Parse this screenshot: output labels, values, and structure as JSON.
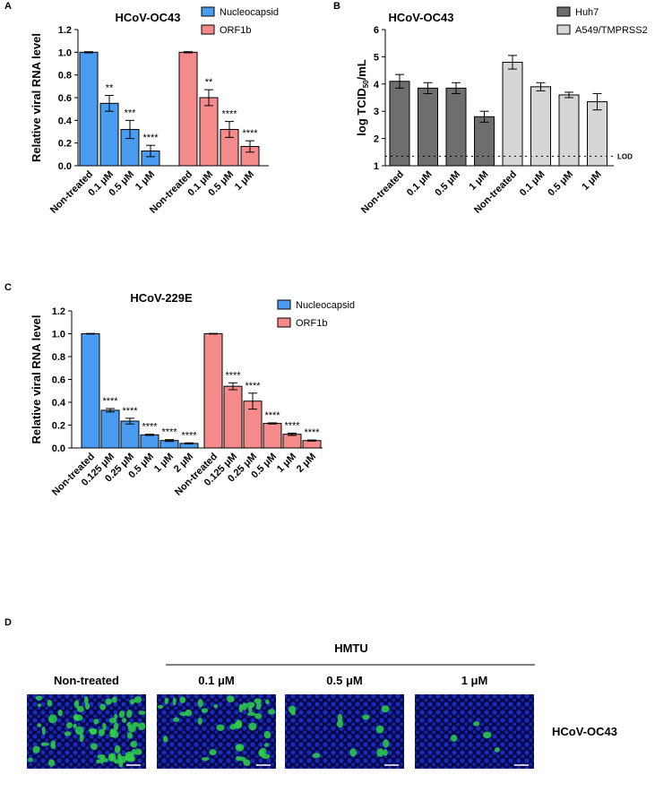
{
  "chart_data": [
    {
      "type": "bar",
      "title": "HCoV-OC43",
      "ylabel": [
        "Relative viral RNA level"
      ],
      "categories": [
        "Non-treated",
        "0.1 μM",
        "0.5 μM",
        "1 μM",
        "Non-treated",
        "0.1 μM",
        "0.5 μM",
        "1 μM"
      ],
      "series": [
        {
          "name": "Nucleocapsid",
          "color": "#4a9cf0",
          "values": [
            1.0,
            0.55,
            0.32,
            0.13,
            null,
            null,
            null,
            null
          ],
          "errors": [
            0.005,
            0.07,
            0.08,
            0.05,
            null,
            null,
            null,
            null
          ],
          "significance": [
            null,
            "**",
            "***",
            "****",
            null,
            null,
            null,
            null
          ]
        },
        {
          "name": "ORF1b",
          "color": "#f58a8a",
          "values": [
            null,
            null,
            null,
            null,
            1.0,
            0.6,
            0.32,
            0.17
          ],
          "errors": [
            null,
            null,
            null,
            null,
            0.005,
            0.07,
            0.07,
            0.05
          ],
          "significance": [
            null,
            null,
            null,
            null,
            null,
            "**",
            "****",
            "****"
          ]
        }
      ],
      "ylim": [
        0,
        1.2
      ],
      "yticks": [
        {
          "value": 0,
          "label": "0.0"
        },
        0.2,
        0.4,
        0.6,
        0.8,
        {
          "value": 1,
          "label": "1.0"
        },
        1.2
      ],
      "legend": "top-right",
      "grid": false
    },
    {
      "type": "bar",
      "title": "HCoV-OC43",
      "ylabel": [
        "log TCID",
        "50",
        "/mL"
      ],
      "categories": [
        "Non-treated",
        "0.1 μM",
        "0.5 μM",
        "1 μM",
        "Non-treated",
        "0.1 μM",
        "0.5 μM",
        "1 μM"
      ],
      "series": [
        {
          "name": "Huh7",
          "color": "#6e6e6e",
          "values": [
            4.1,
            3.85,
            3.85,
            2.8,
            null,
            null,
            null,
            null
          ],
          "errors": [
            0.25,
            0.2,
            0.2,
            0.2,
            null,
            null,
            null,
            null
          ]
        },
        {
          "name": "A549/TMPRSS2",
          "color": "#d6d6d6",
          "values": [
            null,
            null,
            null,
            null,
            4.8,
            3.9,
            3.6,
            3.35
          ],
          "errors": [
            null,
            null,
            null,
            null,
            0.25,
            0.15,
            0.1,
            0.3
          ]
        }
      ],
      "ylim": [
        1,
        6
      ],
      "yticks": [
        1,
        2,
        3,
        4,
        5,
        6
      ],
      "lod": {
        "value": 1.35,
        "label": "LOD"
      },
      "legend": "top-right",
      "grid": false
    },
    {
      "type": "bar",
      "title": "HCoV-229E",
      "ylabel": [
        "Relative viral RNA level"
      ],
      "categories": [
        "Non-treated",
        "0.125 μM",
        "0.25 μM",
        "0.5 μM",
        "1 μM",
        "2 μM",
        "Non-treated",
        "0.125 μM",
        "0.25 μM",
        "0.5 μM",
        "1 μM",
        "2 μM"
      ],
      "series": [
        {
          "name": "Nucleocapsid",
          "color": "#4a9cf0",
          "values": [
            1.0,
            0.33,
            0.235,
            0.115,
            0.065,
            0.04,
            null,
            null,
            null,
            null,
            null,
            null
          ],
          "errors": [
            0.003,
            0.015,
            0.025,
            0.005,
            0.008,
            0.005,
            null,
            null,
            null,
            null,
            null,
            null
          ],
          "significance": [
            null,
            "****",
            "****",
            "****",
            "****",
            "****",
            null,
            null,
            null,
            null,
            null,
            null
          ]
        },
        {
          "name": "ORF1b",
          "color": "#f58a8a",
          "values": [
            null,
            null,
            null,
            null,
            null,
            null,
            1.0,
            0.54,
            0.41,
            0.215,
            0.12,
            0.065
          ],
          "errors": [
            null,
            null,
            null,
            null,
            null,
            null,
            0.003,
            0.03,
            0.07,
            0.005,
            0.01,
            0.005
          ],
          "significance": [
            null,
            null,
            null,
            null,
            null,
            null,
            null,
            "****",
            "****",
            "****",
            "****",
            "****"
          ]
        }
      ],
      "ylim": [
        0,
        1.2
      ],
      "yticks": [
        {
          "value": 0,
          "label": "0.0"
        },
        0.2,
        0.4,
        0.6,
        0.8,
        {
          "value": 1,
          "label": "1.0"
        },
        1.2
      ],
      "legend": "top-right",
      "grid": false
    }
  ],
  "panel_labels": [
    "A",
    "B",
    "C",
    "D"
  ],
  "panel_d": {
    "treatment": "HMTU",
    "conditions": [
      "Non-treated",
      "0.1 μM",
      "0.5 μM",
      "1 μM"
    ],
    "virus": "HCoV-OC43"
  }
}
